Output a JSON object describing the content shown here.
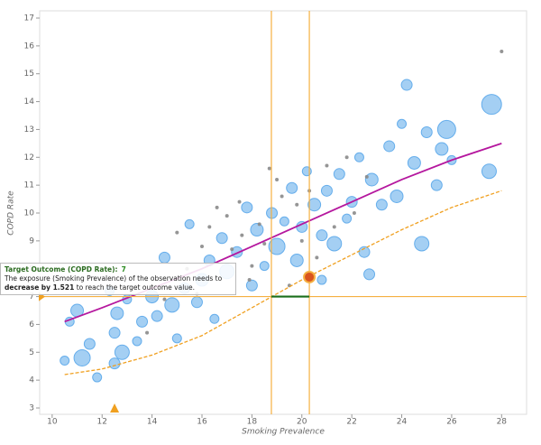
{
  "chart_data": {
    "type": "scatter",
    "x_label": "Smoking Prevalence",
    "y_label": "COPD Rate",
    "xlim": [
      9.5,
      29
    ],
    "ylim": [
      3,
      17
    ],
    "xticks": [
      10,
      12,
      14,
      16,
      18,
      20,
      22,
      24,
      26,
      28
    ],
    "yticks": [
      3,
      4,
      5,
      6,
      7,
      8,
      9,
      10,
      11,
      12,
      13,
      14,
      15,
      16,
      17
    ],
    "series": [
      {
        "color": "#5aa7ea",
        "x": [
          10.7,
          11,
          11.2,
          10.5,
          11.5,
          11.8,
          12.5,
          12.3,
          12.6,
          12.8,
          12.5,
          13,
          13.4,
          13.6,
          14,
          14.2,
          14.5,
          14.8,
          15,
          15.3,
          15.5,
          15.8,
          16,
          16.3,
          16.5,
          16.8,
          17,
          17.4,
          17.8,
          18,
          18.2,
          18.5,
          18.8,
          19,
          19.3,
          19.6,
          19.8,
          20,
          20.2,
          20.5,
          20.8,
          21,
          21.3,
          21.5,
          21.8,
          22,
          22.3,
          22.5,
          22.8,
          23.2,
          23.5,
          23.8,
          24,
          24.2,
          24.5,
          24.8,
          25,
          25.4,
          25.6,
          25.8,
          26,
          27.5,
          27.6,
          20.8,
          22.7
        ],
        "values": [
          6.1,
          6.5,
          4.8,
          4.7,
          5.3,
          4.1,
          5.7,
          7.2,
          6.4,
          5.0,
          4.6,
          6.9,
          5.4,
          6.1,
          7.0,
          6.3,
          8.4,
          6.7,
          5.5,
          7.3,
          9.6,
          6.8,
          7.6,
          8.3,
          6.2,
          9.1,
          7.9,
          8.6,
          10.2,
          7.4,
          9.4,
          8.1,
          10.0,
          8.8,
          9.7,
          10.9,
          8.3,
          9.5,
          11.5,
          10.3,
          9.2,
          10.8,
          8.9,
          11.4,
          9.8,
          10.4,
          12.0,
          8.6,
          11.2,
          10.3,
          12.4,
          10.6,
          13.2,
          14.6,
          11.8,
          8.9,
          12.9,
          11.0,
          12.3,
          13.0,
          11.9,
          11.5,
          13.9,
          7.6,
          7.8
        ],
        "sizes": [
          5,
          7,
          9,
          5,
          6,
          5,
          6,
          5,
          7,
          8,
          6,
          5,
          5,
          6,
          7,
          6,
          6,
          8,
          5,
          6,
          5,
          6,
          7,
          6,
          5,
          6,
          8,
          6,
          6,
          6,
          7,
          5,
          6,
          9,
          5,
          6,
          7,
          6,
          5,
          7,
          6,
          6,
          8,
          6,
          5,
          6,
          5,
          6,
          7,
          6,
          6,
          7,
          5,
          6,
          7,
          8,
          6,
          6,
          7,
          10,
          5,
          8,
          11,
          5,
          6
        ]
      },
      {
        "color": "#8a8a8a",
        "x": [
          15,
          16,
          17,
          17.5,
          18,
          18.3,
          18.7,
          19.2,
          19.5,
          20,
          20.6,
          21,
          21.3,
          17.2,
          16.6,
          14.5,
          13.8,
          15.8,
          22.1,
          19.8,
          18.5,
          17.9,
          16.3,
          22.6,
          28,
          20.3,
          21.8,
          19,
          15.4,
          17.6
        ],
        "values": [
          9.3,
          8.8,
          9.9,
          10.4,
          8.1,
          9.6,
          11.6,
          10.6,
          7.4,
          9.0,
          8.4,
          11.7,
          9.5,
          8.7,
          10.2,
          6.9,
          5.7,
          7.1,
          10.0,
          10.3,
          8.9,
          7.6,
          9.5,
          11.3,
          15.8,
          10.8,
          12.0,
          11.2,
          8.0,
          9.2
        ]
      }
    ],
    "curves": [
      {
        "color": "#b5179e",
        "dashed": false,
        "x": [
          10.5,
          12,
          14,
          16,
          18,
          20,
          22,
          24,
          26,
          28
        ],
        "values": [
          6.1,
          6.6,
          7.3,
          8.0,
          8.8,
          9.6,
          10.4,
          11.2,
          11.9,
          12.5
        ]
      },
      {
        "color": "#f0a020",
        "dashed": true,
        "x": [
          10.5,
          12,
          14,
          16,
          18,
          20,
          22,
          24,
          26,
          28
        ],
        "values": [
          4.2,
          4.4,
          4.9,
          5.6,
          6.6,
          7.6,
          8.5,
          9.4,
          10.2,
          10.8
        ]
      }
    ],
    "guide_x": [
      18.78,
      20.3
    ],
    "target_outcome": 7,
    "highlight": {
      "x": 20.3,
      "y": 7.7
    },
    "x_marker": 12.5,
    "tooltip": {
      "title": "Target Outcome (COPD Rate):",
      "text_before": "The exposure (Smoking Prevalence) of the observation needs to",
      "direction": "decrease",
      "amount": "by 1.521",
      "text_after": "to reach the target outcome value."
    }
  }
}
